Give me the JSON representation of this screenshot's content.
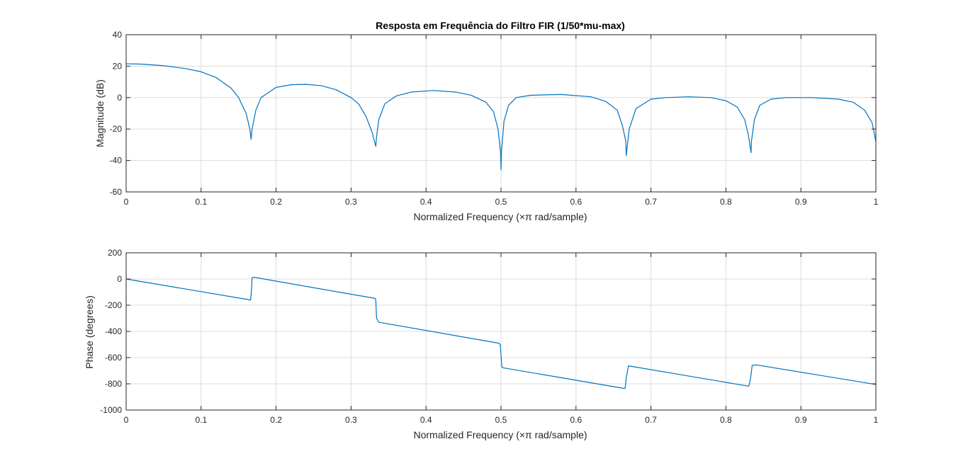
{
  "colors": {
    "line": "#0072BD",
    "background": "#ffffff",
    "axis": "#262626",
    "grid": "#dcdcdc"
  },
  "chart_data": [
    {
      "type": "line",
      "title": "Resposta em Frequência do Filtro FIR (1/50*mu-max)",
      "xlabel": "Normalized Frequency  (×π rad/sample)",
      "ylabel": "Magnitude (dB)",
      "xlim": [
        0,
        1
      ],
      "ylim": [
        -60,
        40
      ],
      "xticks": [
        0,
        0.1,
        0.2,
        0.3,
        0.4,
        0.5,
        0.6,
        0.7,
        0.8,
        0.9,
        1
      ],
      "xtick_labels": [
        "0",
        "0.1",
        "0.2",
        "0.3",
        "0.4",
        "0.5",
        "0.6",
        "0.7",
        "0.8",
        "0.9",
        "1"
      ],
      "yticks": [
        -60,
        -40,
        -20,
        0,
        20,
        40
      ],
      "ytick_labels": [
        "-60",
        "-40",
        "-20",
        "0",
        "20",
        "40"
      ],
      "grid": true,
      "x": [
        0,
        0.02,
        0.05,
        0.08,
        0.1,
        0.12,
        0.14,
        0.15,
        0.16,
        0.165,
        0.1667,
        0.168,
        0.173,
        0.18,
        0.2,
        0.22,
        0.24,
        0.26,
        0.28,
        0.3,
        0.31,
        0.32,
        0.328,
        0.333,
        0.334,
        0.337,
        0.345,
        0.36,
        0.38,
        0.41,
        0.44,
        0.46,
        0.48,
        0.49,
        0.496,
        0.4995,
        0.5,
        0.5005,
        0.504,
        0.51,
        0.52,
        0.54,
        0.58,
        0.62,
        0.64,
        0.655,
        0.662,
        0.6665,
        0.667,
        0.671,
        0.68,
        0.7,
        0.72,
        0.75,
        0.78,
        0.8,
        0.815,
        0.825,
        0.83,
        0.8335,
        0.834,
        0.838,
        0.845,
        0.86,
        0.88,
        0.915,
        0.95,
        0.97,
        0.985,
        0.995,
        1.0
      ],
      "values": [
        21.5,
        21.3,
        20.3,
        18.4,
        16.4,
        12.8,
        6,
        0,
        -10,
        -20,
        -26.5,
        -20,
        -8,
        0,
        6.5,
        8.2,
        8.4,
        7.6,
        5,
        0,
        -4,
        -12,
        -22,
        -31,
        -25,
        -14,
        -4,
        1,
        3.5,
        4.5,
        3.5,
        1.5,
        -3,
        -9,
        -20,
        -35,
        -46,
        -35,
        -15,
        -5,
        0,
        1.5,
        2,
        0.5,
        -2.5,
        -8,
        -18,
        -28,
        -37,
        -20,
        -7,
        -1,
        0,
        0.5,
        0,
        -2,
        -6,
        -14,
        -24,
        -35,
        -28,
        -14,
        -5,
        -1,
        0,
        0,
        -1,
        -3,
        -8,
        -16,
        -28
      ]
    },
    {
      "type": "line",
      "title": "",
      "xlabel": "Normalized Frequency  (×π rad/sample)",
      "ylabel": "Phase (degrees)",
      "xlim": [
        0,
        1
      ],
      "ylim": [
        -1000,
        200
      ],
      "xticks": [
        0,
        0.1,
        0.2,
        0.3,
        0.4,
        0.5,
        0.6,
        0.7,
        0.8,
        0.9,
        1
      ],
      "xtick_labels": [
        "0",
        "0.1",
        "0.2",
        "0.3",
        "0.4",
        "0.5",
        "0.6",
        "0.7",
        "0.8",
        "0.9",
        "1"
      ],
      "yticks": [
        -1000,
        -800,
        -600,
        -400,
        -200,
        0,
        200
      ],
      "ytick_labels": [
        "-1000",
        "-800",
        "-600",
        "-400",
        "-200",
        "0",
        "200"
      ],
      "grid": true,
      "x": [
        0,
        0.166,
        0.167,
        0.168,
        0.17,
        0.332,
        0.333,
        0.334,
        0.337,
        0.497,
        0.499,
        0.5,
        0.501,
        0.503,
        0.664,
        0.6655,
        0.667,
        0.67,
        0.83,
        0.831,
        0.833,
        0.835,
        0.84,
        1.0
      ],
      "values": [
        0,
        -160,
        -100,
        10,
        14,
        -148,
        -160,
        -300,
        -330,
        -490,
        -500,
        -580,
        -670,
        -678,
        -835,
        -835,
        -760,
        -663,
        -818,
        -810,
        -750,
        -660,
        -655,
        -805
      ]
    }
  ]
}
